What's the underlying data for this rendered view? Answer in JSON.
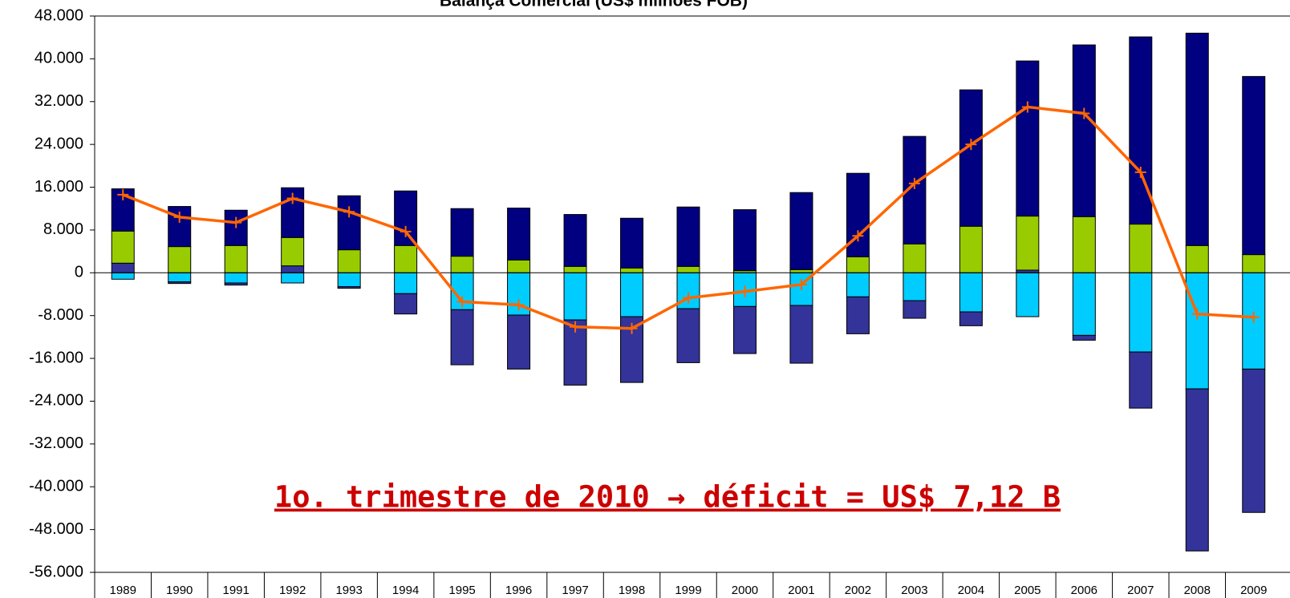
{
  "chart_data": {
    "type": "stacked_bar_line",
    "title": "Balança Comercial (US$ milhões FOB)",
    "annotation": "1o. trimestre de 2010 → déficit = US$ 7,12 B",
    "categories": [
      "1989",
      "1990",
      "1991",
      "1992",
      "1993",
      "1994",
      "1995",
      "1996",
      "1997",
      "1998",
      "1999",
      "2000",
      "2001",
      "2002",
      "2003",
      "2004",
      "2005",
      "2006",
      "2007",
      "2008",
      "2009"
    ],
    "series": [
      {
        "color": "#00ccff",
        "values": [
          -1200,
          -1700,
          -1900,
          -1900,
          -2600,
          -3900,
          -6900,
          -7900,
          -8800,
          -8200,
          -6700,
          -6300,
          -6100,
          -4500,
          -5200,
          -7300,
          -8200,
          -11700,
          -14800,
          -21700,
          -18000
        ]
      },
      {
        "color": "#333399",
        "values": [
          1800,
          -300,
          -400,
          1300,
          -300,
          -3800,
          -10300,
          -10100,
          -12200,
          -12300,
          -10100,
          -8800,
          -10800,
          -6900,
          -3300,
          -2600,
          500,
          -900,
          -10500,
          -30300,
          -26800
        ]
      },
      {
        "color": "#99cc00",
        "values": [
          6000,
          4900,
          5100,
          5300,
          4300,
          5100,
          3100,
          2400,
          1200,
          900,
          1200,
          400,
          600,
          3000,
          5400,
          8700,
          10100,
          10500,
          9100,
          5100,
          3400
        ]
      },
      {
        "color": "#000080",
        "values": [
          7900,
          7500,
          6600,
          9300,
          10100,
          10200,
          8900,
          9700,
          9700,
          9300,
          11100,
          11400,
          14400,
          15600,
          20100,
          25500,
          29000,
          32100,
          35000,
          39700,
          33300
        ]
      }
    ],
    "line": {
      "color": "#ff6600",
      "values": [
        14600,
        10400,
        9400,
        13900,
        11400,
        7700,
        -5400,
        -6000,
        -10100,
        -10400,
        -4700,
        -3500,
        -2200,
        6900,
        16700,
        24000,
        31000,
        29800,
        18800,
        -7700,
        -8300
      ]
    },
    "ylim": [
      -56000,
      48000
    ],
    "yticks": [
      {
        "value": 48000,
        "label": "48.000"
      },
      {
        "value": 40000,
        "label": "40.000"
      },
      {
        "value": 32000,
        "label": "32.000"
      },
      {
        "value": 24000,
        "label": "24.000"
      },
      {
        "value": 16000,
        "label": "16.000"
      },
      {
        "value": 8000,
        "label": "8.000"
      },
      0,
      {
        "value": -8000,
        "label": "-8.000"
      },
      {
        "value": -16000,
        "label": "-16.000"
      },
      {
        "value": -24000,
        "label": "-24.000"
      },
      {
        "value": -32000,
        "label": "-32.000"
      },
      {
        "value": -40000,
        "label": "-40.000"
      },
      {
        "value": -48000,
        "label": "-48.000"
      },
      {
        "value": -56000,
        "label": "-56.000"
      }
    ],
    "grid": false
  }
}
